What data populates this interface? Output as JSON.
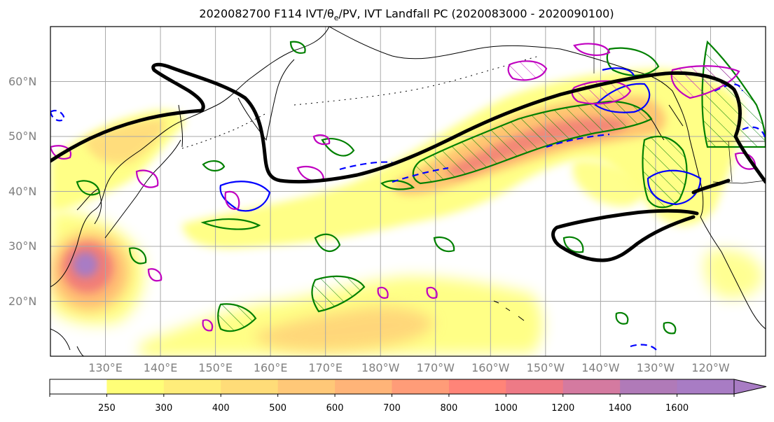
{
  "title": "2020082700 F114 IVT/θe/PV, IVT Landfall PC (2020083000 - 2020090100)",
  "map": {
    "lat_ticks": [
      {
        "value": 60,
        "label": "60°N"
      },
      {
        "value": 50,
        "label": "50°N"
      },
      {
        "value": 40,
        "label": "40°N"
      },
      {
        "value": 30,
        "label": "30°N"
      },
      {
        "value": 20,
        "label": "20°N"
      }
    ],
    "lon_ticks": [
      {
        "value": 130,
        "label": "130°E"
      },
      {
        "value": 140,
        "label": "140°E"
      },
      {
        "value": 150,
        "label": "150°E"
      },
      {
        "value": 160,
        "label": "160°E"
      },
      {
        "value": 170,
        "label": "170°E"
      },
      {
        "value": 180,
        "label": "180°W"
      },
      {
        "value": 190,
        "label": "170°W"
      },
      {
        "value": 200,
        "label": "160°W"
      },
      {
        "value": 210,
        "label": "150°W"
      },
      {
        "value": 220,
        "label": "140°W"
      },
      {
        "value": 230,
        "label": "130°W"
      },
      {
        "value": 240,
        "label": "120°W"
      }
    ],
    "extent": {
      "lon_min": 120,
      "lon_max": 250,
      "lat_min": 10,
      "lat_max": 70
    },
    "colors": {
      "ivt_low": "#ffff80",
      "ivt_mid": "#ffb870",
      "ivt_high": "#f07878",
      "ivt_max": "#a87cc4",
      "theta_e": "#008000",
      "pv_solid": "#0000ff",
      "pc_contour": "#000000",
      "magenta": "#c000c0",
      "grid": "#a8a8a8"
    }
  },
  "colorbar": {
    "ticks": [
      "250",
      "300",
      "400",
      "500",
      "600",
      "700",
      "800",
      "1000",
      "1200",
      "1400",
      "1600"
    ],
    "colors": [
      "#ffffff",
      "#fffe78",
      "#ffed7a",
      "#ffdc78",
      "#ffc878",
      "#ffb478",
      "#ff9c78",
      "#ff8478",
      "#ee7a86",
      "#d47aa0",
      "#b07ab8",
      "#a87cc4"
    ]
  }
}
